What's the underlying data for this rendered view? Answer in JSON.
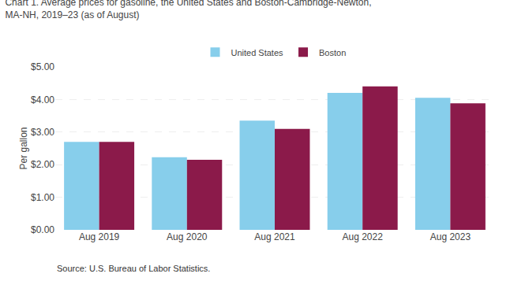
{
  "chart_data": {
    "type": "bar",
    "title": "Chart 1. Average prices for gasoline, the United States and Boston-Cambridge-Newton,\nMA-NH, 2019–23 (as of August)",
    "y_label": "Per gallon",
    "annotations": [
      "Source: U.S. Bureau of Labor Statistics."
    ],
    "categories": [
      "Aug 2019",
      "Aug 2020",
      "Aug 2021",
      "Aug 2022",
      "Aug 2023"
    ],
    "series": [
      {
        "name": "United States",
        "color": "#87CEEB",
        "values": [
          2.7,
          2.23,
          3.35,
          4.2,
          4.05
        ]
      },
      {
        "name": "Boston",
        "color": "#8B1A4A",
        "values": [
          2.7,
          2.15,
          3.1,
          4.4,
          3.88
        ]
      }
    ],
    "ylim": [
      0,
      5.0
    ],
    "yticks": [
      {
        "value": 0.0,
        "label": "$0.00"
      },
      {
        "value": 1.0,
        "label": "$1.00"
      },
      {
        "value": 2.0,
        "label": "$2.00"
      },
      {
        "value": 3.0,
        "label": "$3.00"
      },
      {
        "value": 4.0,
        "label": "$4.00"
      },
      {
        "value": 5.0,
        "label": "$5.00"
      }
    ],
    "grid": true,
    "legend": "top"
  }
}
